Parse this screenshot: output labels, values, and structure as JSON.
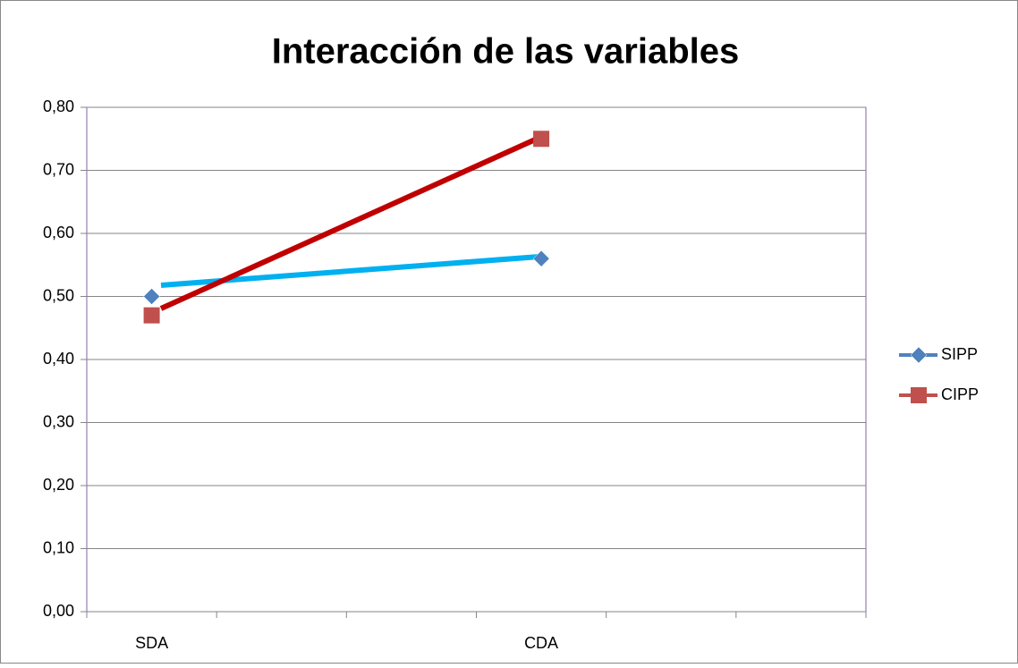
{
  "chart_data": {
    "type": "line",
    "title": "Interacción de las variables",
    "categories": [
      "SDA",
      null,
      null,
      "CDA",
      null,
      null
    ],
    "series": [
      {
        "name": "SIPP",
        "color": "#4f81bd",
        "marker": "diamond",
        "values": [
          0.5,
          null,
          null,
          0.56,
          null,
          null
        ]
      },
      {
        "name": "CIPP",
        "color": "#c0504d",
        "marker": "square",
        "values": [
          0.47,
          null,
          null,
          0.75,
          null,
          null
        ]
      }
    ],
    "ylim": [
      0,
      0.8
    ],
    "yticks": [
      {
        "value": 0,
        "label": "0,00"
      },
      {
        "value": 0.1,
        "label": "0,10"
      },
      {
        "value": 0.2,
        "label": "0,20"
      },
      {
        "value": 0.3,
        "label": "0,30"
      },
      {
        "value": 0.4,
        "label": "0,40"
      },
      {
        "value": 0.5,
        "label": "0,50"
      },
      {
        "value": 0.6,
        "label": "0,60"
      },
      {
        "value": 0.7,
        "label": "0,70"
      },
      {
        "value": 0.8,
        "label": "0,80"
      }
    ],
    "grid": true,
    "legend": "right"
  }
}
